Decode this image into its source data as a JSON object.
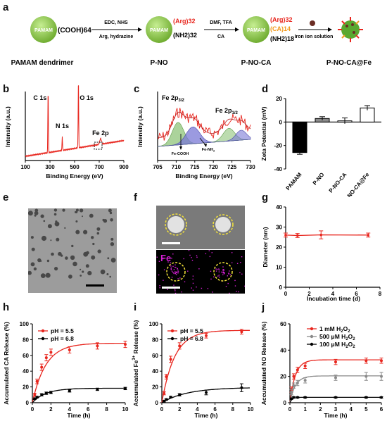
{
  "scheme": {
    "panel": "a",
    "sphere_label": "PAMAM",
    "s1_right": "(COOH)64",
    "arrow1_top": "EDC, NHS",
    "arrow1_bottom": "Arg, hydrazine",
    "s2_top": "(Arg)32",
    "s2_bottom": "(NH2)32",
    "arrow2_top": "DMF, TFA",
    "arrow2_bottom": "CA",
    "s3_top": "(Arg)32",
    "s3_mid": "(CA)14",
    "s3_bottom": "(NH2)18",
    "arrow3_bottom": "Iron ion solution",
    "names": [
      "PAMAM dendrimer",
      "P-NO",
      "P-NO-CA",
      "P-NO-CA@Fe"
    ],
    "colors": {
      "sphere": "#7cc33a",
      "arg": "#e8261e",
      "ca": "#f39a1c"
    }
  },
  "panels": {
    "b": "b",
    "c": "c",
    "d": "d",
    "e": "e",
    "f": "f",
    "g": "g",
    "h": "h",
    "i": "i",
    "j": "j",
    "f_fe": "Fe"
  },
  "chart_data": [
    {
      "id": "b",
      "type": "line",
      "xlabel": "Binding Energy (eV)",
      "ylabel": "Intensity (a.u.)",
      "xlim": [
        100,
        900
      ],
      "xticks": [
        100,
        300,
        500,
        700,
        900
      ],
      "peaks": [
        {
          "label": "C 1s",
          "x": 285
        },
        {
          "label": "N 1s",
          "x": 400
        },
        {
          "label": "O 1s",
          "x": 531
        },
        {
          "label": "Fe 2p",
          "x": 711
        }
      ],
      "color": "#e8261e"
    },
    {
      "id": "c",
      "type": "line",
      "xlabel": "Binding Energy (eV)",
      "ylabel": "Intensity (a.u.)",
      "xlim": [
        705,
        730
      ],
      "xticks": [
        705,
        710,
        715,
        720,
        725,
        730
      ],
      "annotations": [
        "Fe 2p3/2",
        "Fe 2p1/2",
        "Fe-COOH",
        "Fe-NH2"
      ],
      "series": [
        {
          "name": "Fe-COOH",
          "color": "#8fc47a"
        },
        {
          "name": "Fe-NH2",
          "color": "#7a78d6"
        }
      ]
    },
    {
      "id": "d",
      "type": "bar",
      "ylabel": "Zeta Potential (mV)",
      "categories": [
        "PAMAM",
        "P-NO",
        "P-NO-CA",
        "P-NO-CA@Fe"
      ],
      "values": [
        -26,
        3,
        1,
        12
      ],
      "errors": [
        1.5,
        1.5,
        2.5,
        2
      ],
      "colors": [
        "#000000",
        "#8a8a8a",
        "#ffffff",
        "#ffffff"
      ],
      "ylim": [
        -40,
        20
      ],
      "yticks": [
        -40,
        -20,
        0,
        20
      ]
    },
    {
      "id": "g",
      "type": "line",
      "xlabel": "Incubation time (d)",
      "ylabel": "Diameter (nm)",
      "x": [
        0,
        1,
        3,
        7
      ],
      "y": [
        26,
        25.8,
        26.1,
        26
      ],
      "errors": [
        1,
        1,
        2,
        1
      ],
      "xlim": [
        0,
        8
      ],
      "xticks": [
        0,
        2,
        4,
        6,
        8
      ],
      "ylim": [
        0,
        40
      ],
      "yticks": [
        0,
        10,
        20,
        30,
        40
      ],
      "color": "#e8261e"
    },
    {
      "id": "h",
      "type": "line",
      "xlabel": "Time (h)",
      "ylabel": "Accumulated CA Release (%)",
      "xlim": [
        0,
        10
      ],
      "xticks": [
        0,
        2,
        4,
        6,
        8,
        10
      ],
      "ylim": [
        0,
        100
      ],
      "yticks": [
        0,
        20,
        40,
        60,
        80,
        100
      ],
      "series": [
        {
          "name": "pH = 5.5",
          "color": "#e8261e",
          "x": [
            0.25,
            0.5,
            1,
            1.5,
            2,
            4,
            7,
            10
          ],
          "y": [
            10,
            27,
            45,
            57,
            64,
            67,
            72,
            74
          ],
          "err": [
            2,
            3,
            4,
            4,
            4,
            4,
            4,
            4
          ]
        },
        {
          "name": "pH = 6.8",
          "color": "#000000",
          "x": [
            0.25,
            0.5,
            1,
            1.5,
            2,
            4,
            7,
            10
          ],
          "y": [
            5,
            7,
            10,
            12,
            13,
            15,
            17,
            18
          ],
          "err": [
            1,
            1,
            1.5,
            1.5,
            1.5,
            1.5,
            1.5,
            1.5
          ]
        }
      ]
    },
    {
      "id": "i",
      "type": "line",
      "xlabel": "Time (h)",
      "ylabel": "Accumulated Fe3+ Release (%)",
      "xlim": [
        0,
        10
      ],
      "xticks": [
        0,
        2,
        4,
        6,
        8,
        10
      ],
      "ylim": [
        0,
        100
      ],
      "yticks": [
        0,
        20,
        40,
        60,
        80,
        100
      ],
      "series": [
        {
          "name": "pH = 5.5",
          "color": "#e8261e",
          "x": [
            0.25,
            0.5,
            1,
            2,
            5,
            9
          ],
          "y": [
            12,
            33,
            55,
            72,
            85,
            90
          ],
          "err": [
            2,
            3,
            4,
            4,
            3,
            3
          ]
        },
        {
          "name": "pH = 6.8",
          "color": "#000000",
          "x": [
            0.25,
            0.5,
            1,
            2,
            5,
            9
          ],
          "y": [
            2,
            4,
            7,
            10,
            13,
            19
          ],
          "err": [
            1,
            1,
            1,
            1.5,
            3,
            5
          ]
        }
      ]
    },
    {
      "id": "j",
      "type": "line",
      "xlabel": "Time (h)",
      "ylabel": "Accumulated NO Release (%)",
      "xlim": [
        0,
        6
      ],
      "xticks": [
        0,
        1,
        2,
        3,
        4,
        5,
        6
      ],
      "ylim": [
        0,
        60
      ],
      "yticks": [
        0,
        20,
        40,
        60
      ],
      "series": [
        {
          "name": "1 mM H2O2",
          "color": "#e8261e",
          "x": [
            0.1,
            0.25,
            0.5,
            1,
            3,
            5,
            6
          ],
          "y": [
            10,
            20,
            25,
            28,
            31,
            32,
            32
          ],
          "err": [
            2,
            2,
            2,
            2,
            2,
            2,
            2
          ]
        },
        {
          "name": "500 μM H2O2",
          "color": "#8a8a8a",
          "x": [
            0.1,
            0.25,
            0.5,
            1,
            3,
            5,
            6
          ],
          "y": [
            8,
            13,
            15,
            17,
            19,
            20,
            20
          ],
          "err": [
            2,
            2,
            2,
            2,
            2,
            3,
            3
          ]
        },
        {
          "name": "100 μM H2O2",
          "color": "#000000",
          "x": [
            0.1,
            0.25,
            0.5,
            1,
            3,
            5,
            6
          ],
          "y": [
            3,
            4,
            4,
            4,
            4,
            4,
            4
          ],
          "err": [
            0.5,
            0.5,
            0.5,
            0.5,
            0.5,
            0.5,
            0.5
          ]
        }
      ]
    }
  ]
}
